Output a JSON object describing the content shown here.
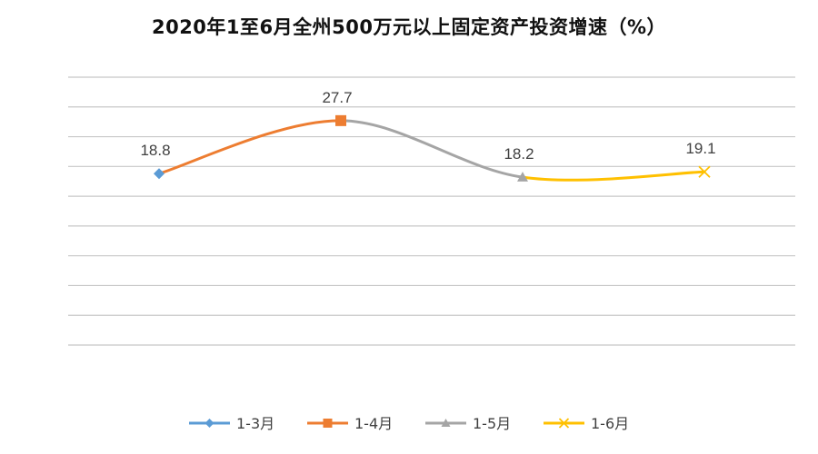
{
  "chart_data": {
    "type": "line",
    "title": "2020年1至6月全州500万元以上固定资产投资增速（%）",
    "categories": [
      "1-3月",
      "1-4月",
      "1-5月",
      "1-6月"
    ],
    "values": [
      18.8,
      27.7,
      18.2,
      19.1
    ],
    "series": [
      {
        "name": "1-3月",
        "color": "#5B9BD5",
        "marker": "diamond"
      },
      {
        "name": "1-4月",
        "color": "#ED7D31",
        "marker": "square"
      },
      {
        "name": "1-5月",
        "color": "#A5A5A5",
        "marker": "triangle"
      },
      {
        "name": "1-6月",
        "color": "#FFC000",
        "marker": "x"
      }
    ],
    "ylim": [
      -10,
      35
    ],
    "grid": true,
    "legend": "bottom"
  }
}
